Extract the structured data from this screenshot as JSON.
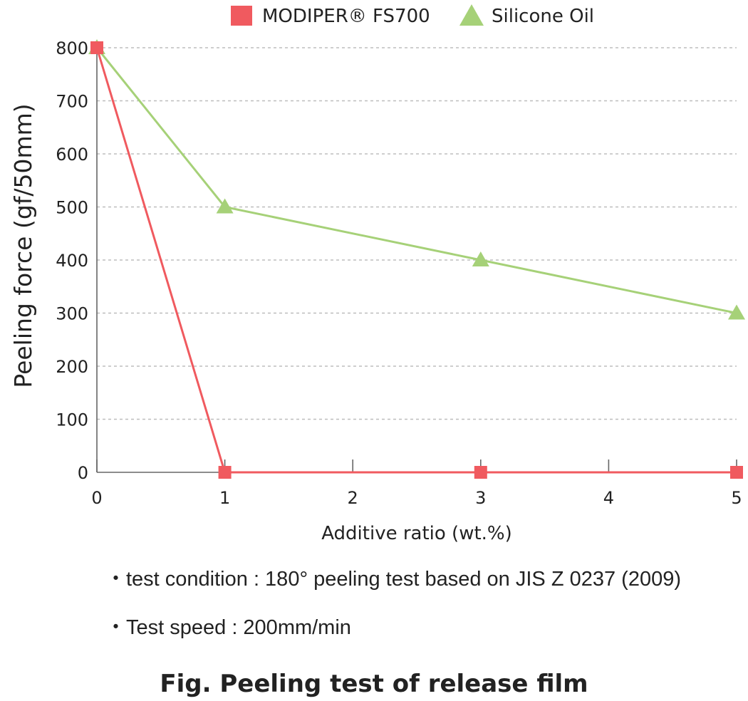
{
  "chart_data": {
    "type": "line",
    "title": "",
    "xlabel": "Additive ratio (wt.%)",
    "ylabel": "Peeling force (gf/50mm)",
    "xlim": [
      0,
      5
    ],
    "ylim": [
      0,
      800
    ],
    "x_ticks": [
      "0",
      "1",
      "2",
      "3",
      "4",
      "5"
    ],
    "y_ticks": [
      "0",
      "100",
      "200",
      "300",
      "400",
      "500",
      "600",
      "700",
      "800"
    ],
    "grid": true,
    "legend_position": "top",
    "series": [
      {
        "name": "MODIPER® FS700",
        "marker": "square",
        "color": "#f05a5f",
        "x": [
          0,
          1,
          3,
          5
        ],
        "y": [
          800,
          0,
          0,
          0
        ]
      },
      {
        "name": "Silicone Oil",
        "marker": "triangle",
        "color": "#a6d178",
        "x": [
          0,
          1,
          3,
          5
        ],
        "y": [
          800,
          500,
          400,
          300
        ]
      }
    ]
  },
  "notes": [
    "・test condition : 180° peeling test based on JIS Z 0237 (2009)",
    "・Test speed : 200mm/min"
  ],
  "caption": "Fig. Peeling test of release film"
}
